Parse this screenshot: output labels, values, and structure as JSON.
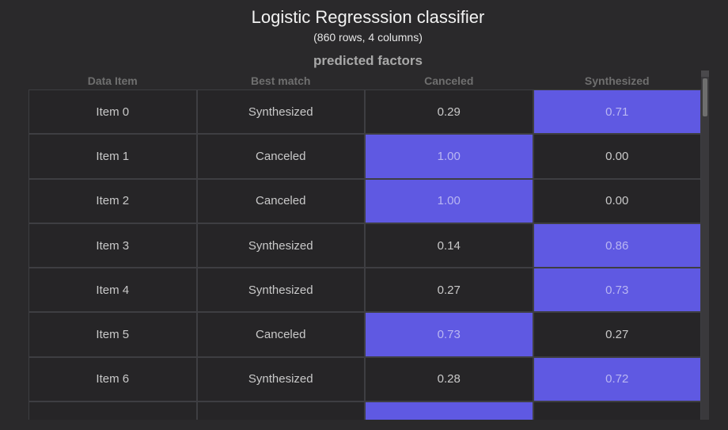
{
  "title": "Logistic Regresssion classifier",
  "subtitle": "(860 rows, 4 columns)",
  "section_title": "predicted factors",
  "columns": [
    "Data Item",
    "Best match",
    "Canceled",
    "Synthesized"
  ],
  "highlight_color": "#5f59e2",
  "rows": [
    {
      "item": "Item 0",
      "best": "Synthesized",
      "canceled": "0.29",
      "synthesized": "0.71",
      "hi": "synthesized"
    },
    {
      "item": "Item 1",
      "best": "Canceled",
      "canceled": "1.00",
      "synthesized": "0.00",
      "hi": "canceled"
    },
    {
      "item": "Item 2",
      "best": "Canceled",
      "canceled": "1.00",
      "synthesized": "0.00",
      "hi": "canceled"
    },
    {
      "item": "Item 3",
      "best": "Synthesized",
      "canceled": "0.14",
      "synthesized": "0.86",
      "hi": "synthesized"
    },
    {
      "item": "Item 4",
      "best": "Synthesized",
      "canceled": "0.27",
      "synthesized": "0.73",
      "hi": "synthesized"
    },
    {
      "item": "Item 5",
      "best": "Canceled",
      "canceled": "0.73",
      "synthesized": "0.27",
      "hi": "canceled"
    },
    {
      "item": "Item 6",
      "best": "Synthesized",
      "canceled": "0.28",
      "synthesized": "0.72",
      "hi": "synthesized"
    },
    {
      "item": "",
      "best": "",
      "canceled": "",
      "synthesized": "",
      "hi": "canceled"
    }
  ]
}
